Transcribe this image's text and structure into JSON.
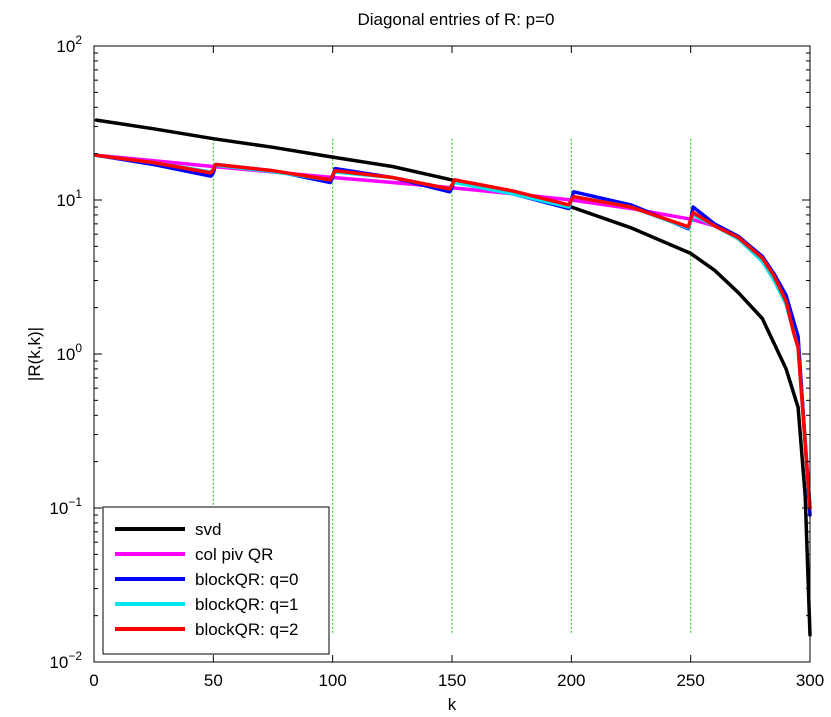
{
  "chart_data": {
    "type": "line",
    "title": "Diagonal entries of R: p=0",
    "xlabel": "k",
    "ylabel": "|R(k,k)|",
    "xlim": [
      0,
      300
    ],
    "ylim": [
      0.01,
      100
    ],
    "yscale": "log",
    "x_ticks": [
      0,
      50,
      100,
      150,
      200,
      250,
      300
    ],
    "y_ticks": [
      {
        "value": 0.01,
        "base": "10",
        "exp": "−2"
      },
      {
        "value": 0.1,
        "base": "10",
        "exp": "−1"
      },
      {
        "value": 1,
        "base": "10",
        "exp": "0"
      },
      {
        "value": 10,
        "base": "10",
        "exp": "1"
      },
      {
        "value": 100,
        "base": "10",
        "exp": "2"
      }
    ],
    "grid": false,
    "legend_position": "bottom-left",
    "block_boundaries": {
      "x": [
        50,
        100,
        150,
        200,
        250
      ],
      "y_range": [
        0.015,
        25
      ],
      "color": "#00cc00"
    },
    "series": [
      {
        "name": "svd",
        "color": "#000000",
        "x": [
          1,
          25,
          50,
          75,
          100,
          125,
          150,
          175,
          200,
          225,
          250,
          260,
          270,
          280,
          290,
          295,
          298,
          300
        ],
        "y": [
          33,
          29,
          25,
          22,
          19,
          16.5,
          13.5,
          11,
          9,
          6.6,
          4.5,
          3.5,
          2.5,
          1.7,
          0.8,
          0.45,
          0.12,
          0.015
        ]
      },
      {
        "name": "col piv QR",
        "color": "#ff00ff",
        "x": [
          1,
          25,
          50,
          75,
          100,
          125,
          150,
          175,
          200,
          225,
          250,
          260,
          270,
          280,
          285,
          290,
          295,
          300
        ],
        "y": [
          19.5,
          18,
          16.5,
          15.2,
          14,
          13,
          12,
          11,
          10,
          8.8,
          7.5,
          6.8,
          5.7,
          4.2,
          3.3,
          2.3,
          1.2,
          0.1
        ]
      },
      {
        "name": "blockQR: q=0",
        "color": "#0000ff",
        "x": [
          1,
          25,
          49,
          50,
          51,
          75,
          99,
          100,
          101,
          125,
          149,
          150,
          151,
          175,
          199,
          200,
          201,
          225,
          249,
          250,
          251,
          260,
          270,
          280,
          285,
          290,
          295,
          300
        ],
        "y": [
          19.5,
          17,
          14.3,
          15,
          17,
          15.5,
          13,
          14,
          16,
          14,
          11.3,
          12,
          13.5,
          11,
          8.8,
          10,
          11.3,
          9.3,
          6.5,
          7.5,
          9,
          7,
          5.8,
          4.3,
          3.3,
          2.4,
          1.3,
          0.09
        ]
      },
      {
        "name": "blockQR: q=1",
        "color": "#00e5ee",
        "x": [
          1,
          25,
          49,
          50,
          51,
          75,
          99,
          100,
          101,
          125,
          149,
          150,
          151,
          175,
          199,
          200,
          201,
          225,
          249,
          250,
          251,
          260,
          270,
          280,
          285,
          290,
          295,
          300
        ],
        "y": [
          19.5,
          17.5,
          15.2,
          15.8,
          16.8,
          15.3,
          13.5,
          14.5,
          15.2,
          14,
          11.8,
          12.5,
          13,
          11,
          9,
          10,
          10.5,
          9,
          6.6,
          7.2,
          8,
          6.8,
          5.6,
          4,
          3,
          2.1,
          1.1,
          0.1
        ]
      },
      {
        "name": "blockQR: q=2",
        "color": "#ff0000",
        "x": [
          1,
          25,
          49,
          50,
          51,
          75,
          99,
          100,
          101,
          125,
          149,
          150,
          151,
          175,
          199,
          200,
          201,
          225,
          249,
          250,
          251,
          260,
          270,
          280,
          285,
          290,
          293,
          295,
          300
        ],
        "y": [
          19.5,
          17.5,
          15,
          15.8,
          17,
          15.5,
          13.5,
          14.5,
          15.5,
          14,
          11.8,
          12.5,
          13.5,
          11.5,
          9.3,
          10,
          10.5,
          9,
          6.7,
          7.5,
          8.3,
          6.8,
          5.7,
          4.2,
          3.2,
          2.2,
          1.4,
          1.1,
          0.1
        ]
      }
    ]
  }
}
